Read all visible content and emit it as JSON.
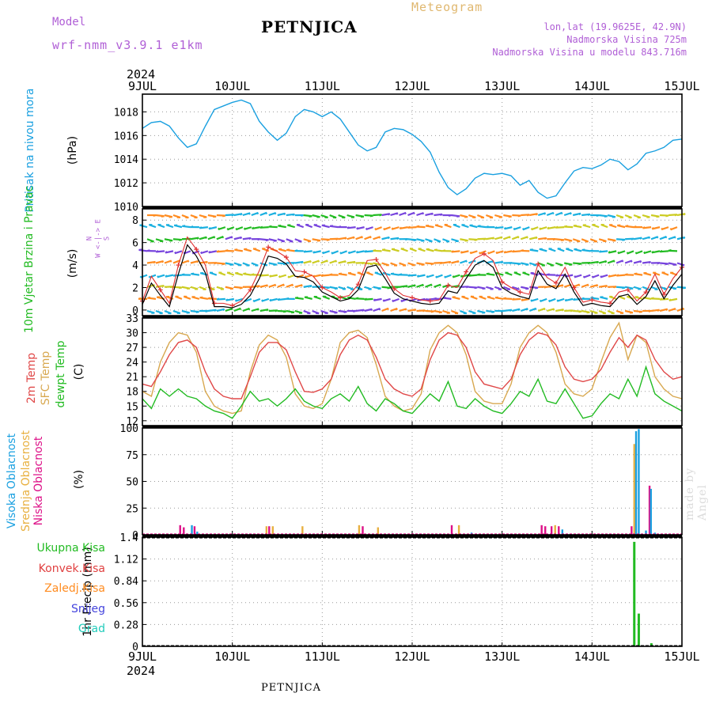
{
  "header": {
    "model_label": "Model",
    "model_name": "wrf-nmm_v3.9.1  e1km",
    "title": "PETNJICA",
    "subtitle": "Meteogram",
    "location": "lon,lat (19.9625E, 42.9N)",
    "elevation": "Nadmorska Visina 725m",
    "model_elevation": "Nadmorska Visina u modelu 843.716m"
  },
  "footer": {
    "station": "PETNJICA"
  },
  "credit": "made by Angel",
  "colors": {
    "pressure": "#1aa0e0",
    "wind_speed": "#000000",
    "gust": "#e03030",
    "temp_2m": "#e04848",
    "temp_sfc": "#d8a850",
    "dewpoint": "#22bb22",
    "cloud_high": "#1aa0e0",
    "cloud_mid": "#e8b040",
    "cloud_low": "#dd1188",
    "precip_total": "#22bb22",
    "precip_conv": "#e04040",
    "precip_frz": "#ff8c20",
    "snow": "#4444dd",
    "hail": "#22ccbb"
  },
  "time_axis": {
    "year": "2024",
    "ticks": [
      "9JUL",
      "10JUL",
      "11JUL",
      "12JUL",
      "13JUL",
      "14JUL",
      "15JUL"
    ],
    "range_days": [
      0,
      6
    ]
  },
  "chart_data": [
    {
      "type": "line",
      "id": "pressure",
      "ylabel": "Pritisak na nivou mora",
      "unit": "(hPa)",
      "ylim": [
        1010,
        1019.5
      ],
      "yticks": [
        "1010",
        "1012",
        "1014",
        "1016",
        "1018"
      ],
      "grid": true,
      "x": [
        0,
        0.1,
        0.2,
        0.3,
        0.4,
        0.5,
        0.6,
        0.7,
        0.8,
        0.9,
        1.0,
        1.1,
        1.2,
        1.3,
        1.4,
        1.5,
        1.6,
        1.7,
        1.8,
        1.9,
        2.0,
        2.1,
        2.2,
        2.3,
        2.4,
        2.5,
        2.6,
        2.7,
        2.8,
        2.9,
        3.0,
        3.1,
        3.2,
        3.3,
        3.4,
        3.5,
        3.6,
        3.7,
        3.8,
        3.9,
        4.0,
        4.1,
        4.2,
        4.3,
        4.4,
        4.5,
        4.6,
        4.7,
        4.8,
        4.9,
        5.0,
        5.1,
        5.2,
        5.3,
        5.4,
        5.5,
        5.6,
        5.7,
        5.8,
        5.9,
        6.0
      ],
      "series": [
        {
          "values": [
            1016.6,
            1017.1,
            1017.2,
            1016.8,
            1015.8,
            1015.0,
            1015.3,
            1016.8,
            1018.2,
            1018.5,
            1018.8,
            1019.0,
            1018.7,
            1017.2,
            1016.3,
            1015.6,
            1016.2,
            1017.6,
            1018.2,
            1018.0,
            1017.6,
            1018.0,
            1017.4,
            1016.3,
            1015.2,
            1014.7,
            1015.0,
            1016.3,
            1016.6,
            1016.5,
            1016.1,
            1015.5,
            1014.6,
            1012.9,
            1011.6,
            1011.0,
            1011.5,
            1012.4,
            1012.8,
            1012.7,
            1012.8,
            1012.6,
            1011.8,
            1012.2,
            1011.2,
            1010.7,
            1010.9,
            1012.0,
            1013.0,
            1013.3,
            1013.2,
            1013.5,
            1014.0,
            1013.8,
            1013.1,
            1013.6,
            1014.5,
            1014.7,
            1015.0,
            1015.6,
            1015.7
          ]
        }
      ]
    },
    {
      "type": "line",
      "id": "wind",
      "ylabel": "10m Vjetar Brzina i Pravac",
      "unit": "(m/s)",
      "compass": "N",
      "compass_row": "W <-|-> E",
      "compass_s": "S",
      "ylim": [
        -0.5,
        9
      ],
      "yticks": [
        "0",
        "2",
        "4",
        "6",
        "8"
      ],
      "grid": true,
      "x": [
        0,
        0.1,
        0.2,
        0.3,
        0.4,
        0.5,
        0.6,
        0.7,
        0.8,
        0.9,
        1.0,
        1.1,
        1.2,
        1.3,
        1.4,
        1.5,
        1.6,
        1.7,
        1.8,
        1.9,
        2.0,
        2.1,
        2.2,
        2.3,
        2.4,
        2.5,
        2.6,
        2.7,
        2.8,
        2.9,
        3.0,
        3.1,
        3.2,
        3.3,
        3.4,
        3.5,
        3.6,
        3.7,
        3.8,
        3.9,
        4.0,
        4.1,
        4.2,
        4.3,
        4.4,
        4.5,
        4.6,
        4.7,
        4.8,
        4.9,
        5.0,
        5.1,
        5.2,
        5.3,
        5.4,
        5.5,
        5.6,
        5.7,
        5.8,
        5.9,
        6.0
      ],
      "series": [
        {
          "name": "speed",
          "values": [
            0.5,
            2.4,
            1.3,
            0.3,
            3.2,
            5.8,
            4.8,
            3.3,
            0.3,
            0.3,
            0.2,
            0.5,
            1.3,
            2.8,
            4.8,
            4.6,
            4.1,
            3.0,
            2.9,
            2.5,
            1.6,
            1.2,
            0.8,
            1.0,
            1.8,
            3.8,
            4.0,
            2.8,
            1.5,
            1.0,
            0.8,
            0.6,
            0.5,
            0.6,
            1.7,
            1.5,
            2.8,
            4.0,
            4.4,
            3.8,
            2.0,
            1.5,
            1.2,
            1.0,
            3.5,
            2.3,
            1.9,
            3.2,
            1.6,
            0.4,
            0.6,
            0.4,
            0.3,
            1.2,
            1.4,
            0.5,
            1.2,
            2.6,
            1.0,
            2.2,
            3.2
          ]
        },
        {
          "name": "gust",
          "values": [
            0.8,
            3.0,
            1.8,
            0.6,
            4.0,
            6.5,
            5.4,
            4.0,
            0.6,
            0.6,
            0.4,
            0.8,
            1.8,
            3.5,
            5.6,
            5.2,
            4.7,
            3.5,
            3.4,
            3.0,
            2.0,
            1.6,
            1.1,
            1.3,
            2.3,
            4.4,
            4.5,
            3.3,
            1.9,
            1.3,
            1.1,
            0.9,
            0.8,
            0.9,
            2.2,
            2.0,
            3.4,
            4.6,
            5.0,
            4.4,
            2.5,
            2.0,
            1.6,
            1.4,
            4.1,
            2.9,
            2.4,
            3.8,
            2.0,
            0.7,
            0.9,
            0.7,
            0.6,
            1.6,
            1.8,
            0.8,
            1.6,
            3.2,
            1.4,
            2.8,
            3.8
          ]
        }
      ]
    },
    {
      "type": "line",
      "id": "temperature",
      "ylabel": "2m Temp",
      "ylabel2": "SFC Temp",
      "ylabel3": "dewpt Temp",
      "unit": "(C)",
      "ylim": [
        11,
        33
      ],
      "yticks": [
        "12",
        "15",
        "18",
        "21",
        "24",
        "27",
        "30",
        "33"
      ],
      "grid": true,
      "x": [
        0,
        0.1,
        0.2,
        0.3,
        0.4,
        0.5,
        0.6,
        0.7,
        0.8,
        0.9,
        1.0,
        1.1,
        1.2,
        1.3,
        1.4,
        1.5,
        1.6,
        1.7,
        1.8,
        1.9,
        2.0,
        2.1,
        2.2,
        2.3,
        2.4,
        2.5,
        2.6,
        2.7,
        2.8,
        2.9,
        3.0,
        3.1,
        3.2,
        3.3,
        3.4,
        3.5,
        3.6,
        3.7,
        3.8,
        3.9,
        4.0,
        4.1,
        4.2,
        4.3,
        4.4,
        4.5,
        4.6,
        4.7,
        4.8,
        4.9,
        5.0,
        5.1,
        5.2,
        5.3,
        5.4,
        5.5,
        5.6,
        5.7,
        5.8,
        5.9,
        6.0
      ],
      "series": [
        {
          "name": "2m",
          "values": [
            19.5,
            19.0,
            22.0,
            25.5,
            28.0,
            28.5,
            27.0,
            22.0,
            18.5,
            17.0,
            16.5,
            16.5,
            21.0,
            26.0,
            28.0,
            28.0,
            26.5,
            22.0,
            18.0,
            17.8,
            18.5,
            20.5,
            25.5,
            28.5,
            29.5,
            28.5,
            25.0,
            20.5,
            18.5,
            17.5,
            17.0,
            18.5,
            24.5,
            28.5,
            30.0,
            29.5,
            27.0,
            22.0,
            19.5,
            19.0,
            18.5,
            20.5,
            25.5,
            28.5,
            30.0,
            29.5,
            27.5,
            23.0,
            20.5,
            20.0,
            20.5,
            22.5,
            26.0,
            29.0,
            27.0,
            29.5,
            28.5,
            24.5,
            22.0,
            20.5,
            21.0
          ]
        },
        {
          "name": "sfc",
          "values": [
            18.0,
            17.0,
            24.0,
            28.0,
            30.0,
            29.5,
            26.0,
            18.0,
            15.0,
            14.0,
            13.5,
            14.0,
            22.0,
            27.5,
            29.5,
            28.5,
            25.0,
            17.5,
            15.0,
            14.5,
            15.5,
            20.5,
            28.0,
            30.0,
            30.5,
            29.0,
            23.5,
            17.0,
            15.0,
            14.0,
            14.5,
            17.5,
            26.5,
            30.0,
            31.5,
            30.0,
            25.5,
            18.0,
            16.0,
            15.5,
            15.5,
            19.5,
            27.0,
            30.0,
            31.5,
            30.0,
            26.0,
            19.5,
            17.5,
            17.0,
            18.5,
            24.0,
            29.0,
            32.0,
            24.5,
            29.5,
            28.0,
            21.0,
            18.5,
            17.0,
            16.5
          ]
        },
        {
          "name": "dewpoint",
          "values": [
            16.5,
            14.5,
            18.5,
            17.0,
            18.5,
            17.0,
            16.5,
            15.0,
            14.0,
            13.5,
            12.5,
            15.0,
            18.0,
            16.0,
            16.5,
            15.0,
            16.5,
            18.5,
            16.0,
            15.0,
            14.5,
            16.5,
            17.5,
            16.0,
            19.0,
            15.5,
            14.0,
            16.5,
            15.5,
            14.0,
            13.5,
            15.5,
            17.5,
            16.0,
            20.0,
            15.0,
            14.5,
            16.5,
            15.0,
            14.0,
            13.5,
            15.5,
            18.0,
            17.0,
            20.5,
            16.0,
            15.5,
            18.5,
            15.5,
            12.5,
            13.0,
            15.5,
            17.5,
            16.5,
            20.5,
            17.0,
            23.0,
            17.5,
            16.0,
            15.0,
            14.0
          ]
        }
      ]
    },
    {
      "type": "bar",
      "id": "cloud",
      "ylabel": "Visoka Oblacnost",
      "ylabel2": "Srednja Oblacnost",
      "ylabel3": "Niska Oblacnost",
      "unit": "(%)",
      "ylim": [
        0,
        100
      ],
      "yticks": [
        "0",
        "25",
        "50",
        "75",
        "100"
      ],
      "grid": true,
      "bars": [
        {
          "x": 0.42,
          "v": 9,
          "s": 2
        },
        {
          "x": 0.46,
          "v": 7,
          "s": 2
        },
        {
          "x": 0.55,
          "v": 9,
          "s": 0
        },
        {
          "x": 0.58,
          "v": 8,
          "s": 2
        },
        {
          "x": 0.61,
          "v": 3,
          "s": 0
        },
        {
          "x": 1.38,
          "v": 8,
          "s": 1
        },
        {
          "x": 1.41,
          "v": 8,
          "s": 2
        },
        {
          "x": 1.45,
          "v": 8,
          "s": 1
        },
        {
          "x": 1.78,
          "v": 8,
          "s": 1
        },
        {
          "x": 2.41,
          "v": 9,
          "s": 1
        },
        {
          "x": 2.45,
          "v": 8,
          "s": 2
        },
        {
          "x": 2.62,
          "v": 7,
          "s": 1
        },
        {
          "x": 3.44,
          "v": 9,
          "s": 2
        },
        {
          "x": 3.52,
          "v": 9,
          "s": 1
        },
        {
          "x": 3.66,
          "v": 2,
          "s": 0
        },
        {
          "x": 4.44,
          "v": 9,
          "s": 2
        },
        {
          "x": 4.48,
          "v": 8,
          "s": 2
        },
        {
          "x": 4.55,
          "v": 8,
          "s": 2
        },
        {
          "x": 4.59,
          "v": 9,
          "s": 1
        },
        {
          "x": 4.63,
          "v": 8,
          "s": 2
        },
        {
          "x": 4.67,
          "v": 5,
          "s": 0
        },
        {
          "x": 5.44,
          "v": 8,
          "s": 2
        },
        {
          "x": 5.47,
          "v": 85,
          "s": 1
        },
        {
          "x": 5.49,
          "v": 97,
          "s": 0
        },
        {
          "x": 5.52,
          "v": 99,
          "s": 0
        },
        {
          "x": 5.6,
          "v": 4,
          "s": 0
        },
        {
          "x": 5.64,
          "v": 46,
          "s": 2
        },
        {
          "x": 5.655,
          "v": 43,
          "s": 0
        },
        {
          "x": 5.7,
          "v": 2,
          "s": 0
        }
      ]
    },
    {
      "type": "bar",
      "id": "precip",
      "ylabel": "1hr Precip (mm)",
      "legend": [
        "Ukupna  Kisa",
        "Konvek.Kisa",
        "Zaledj.Kisa",
        "Snijeg",
        "Grad"
      ],
      "ylim": [
        0,
        1.4
      ],
      "yticks": [
        "0",
        "0.28",
        "0.56",
        "0.84",
        "1.12",
        "1.4"
      ],
      "grid": true,
      "bars": [
        {
          "x": 5.47,
          "v": 1.34
        },
        {
          "x": 5.52,
          "v": 0.42
        },
        {
          "x": 5.66,
          "v": 0.04
        }
      ]
    }
  ]
}
